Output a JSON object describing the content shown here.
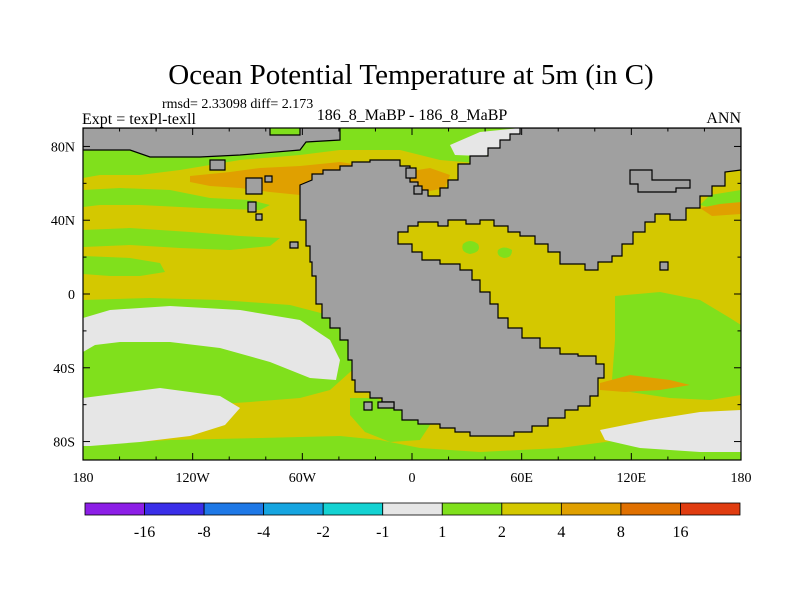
{
  "chart_data": {
    "type": "heatmap",
    "title": "Ocean Potential Temperature at 5m (in C)",
    "stats": "rmsd= 2.33098 diff= 2.173",
    "left_string": "Expt = texPl-texll",
    "center_string": "186_8_MaBP - 186_8_MaBP",
    "right_string": "ANN",
    "x_ticks": [
      "180",
      "120W",
      "60W",
      "0",
      "60E",
      "120E",
      "180"
    ],
    "x_tick_values": [
      -180,
      -120,
      -60,
      0,
      60,
      120,
      180
    ],
    "y_ticks": [
      "80N",
      "40N",
      "0",
      "40S",
      "80S"
    ],
    "y_tick_values": [
      80,
      40,
      0,
      -40,
      -80
    ],
    "xlim": [
      -180,
      180
    ],
    "ylim": [
      -90,
      90
    ],
    "colorbar": {
      "labels": [
        "-16",
        "-8",
        "-4",
        "-2",
        "-1",
        "1",
        "2",
        "4",
        "8",
        "16"
      ],
      "colors": [
        "#8c1ee6",
        "#3a2ee8",
        "#1e78e6",
        "#16a5e0",
        "#14d2d2",
        "#e6e6e6",
        "#80e01c",
        "#d4c800",
        "#e0a000",
        "#e07000",
        "#e03c10"
      ]
    },
    "colors": {
      "land": "#a0a0a0",
      "near_zero": "#e6e6e6",
      "range_1_2": "#80e01c",
      "range_2_4": "#d4c800",
      "range_4_8": "#e0a000",
      "range_8_16": "#e07000"
    }
  }
}
